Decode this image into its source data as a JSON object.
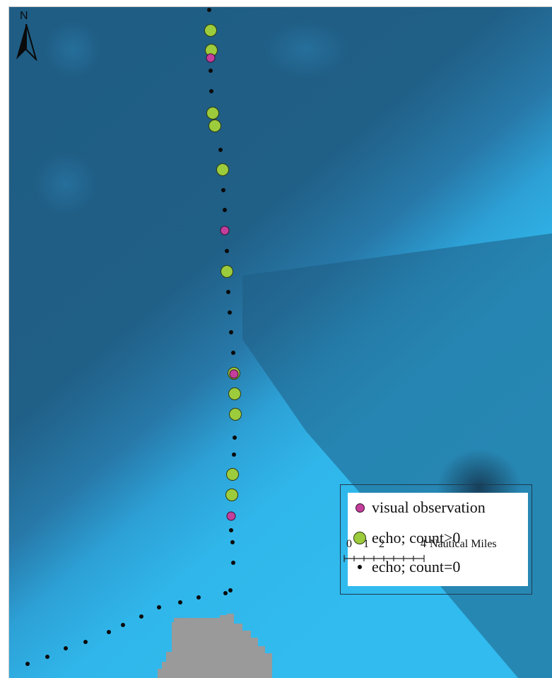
{
  "map": {
    "colors": {
      "deep_water": "#1f5d84",
      "mid_water": "#2a83b6",
      "shallow_water": "#2fb6ea",
      "land": "#9a9a9a",
      "visual_observation": "#c43f9c",
      "echo_positive": "#9ccb3c",
      "echo_zero": "#0a0a0a"
    },
    "north_arrow": {
      "letter": "N",
      "icon": "north-arrow-icon"
    },
    "legend": {
      "items": [
        {
          "label": "visual observation",
          "symbol": "visual-observation"
        },
        {
          "label": "echo; count>0",
          "symbol": "echo-positive"
        },
        {
          "label": "echo; count=0",
          "symbol": "echo-zero"
        }
      ]
    },
    "scale_bar": {
      "tick_0": "0",
      "tick_1": "1",
      "tick_2": "2",
      "tick_4": "4",
      "unit_label": "Nautical Miles"
    }
  }
}
